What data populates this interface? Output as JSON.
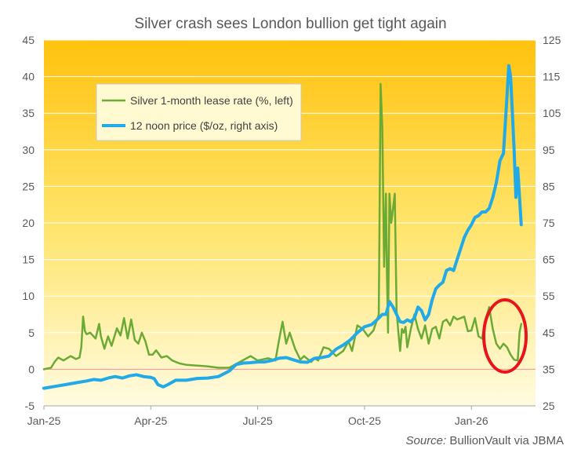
{
  "chart_data": {
    "type": "line",
    "title": "Silver crash sees London bullion get tight again",
    "source_label": "Source:",
    "source_text": "BullionVault via JBMA",
    "x_tick_labels": [
      "Jan-25",
      "Apr-25",
      "Jul-25",
      "Oct-25",
      "Jan-26"
    ],
    "x_tick_values": [
      0,
      3,
      6,
      9,
      12
    ],
    "xlim": [
      0,
      13.8
    ],
    "left_axis": {
      "ylim": [
        -5,
        45
      ],
      "ticks": [
        -5,
        0,
        5,
        10,
        15,
        20,
        25,
        30,
        35,
        40,
        45
      ]
    },
    "right_axis": {
      "ylim": [
        25,
        125
      ],
      "ticks": [
        25,
        35,
        45,
        55,
        65,
        75,
        85,
        95,
        105,
        115,
        125
      ]
    },
    "legend_position": "top-left",
    "colors": {
      "lease": "#6aaa35",
      "price": "#22a9e8",
      "zero_line": "#ff8a8a",
      "highlight": "#e8141c",
      "grid": "#ffffff"
    },
    "series": [
      {
        "name": "Silver 1-month lease rate (%, left)",
        "axis": "left",
        "x": [
          0,
          0.2,
          0.3,
          0.4,
          0.55,
          0.75,
          0.9,
          1.0,
          1.05,
          1.1,
          1.15,
          1.2,
          1.3,
          1.45,
          1.55,
          1.6,
          1.7,
          1.8,
          1.9,
          2.05,
          2.15,
          2.25,
          2.35,
          2.45,
          2.55,
          2.65,
          2.75,
          2.85,
          2.95,
          3.05,
          3.15,
          3.3,
          3.45,
          3.6,
          3.8,
          4.0,
          4.3,
          4.6,
          4.9,
          5.2,
          5.5,
          5.8,
          6.0,
          6.3,
          6.5,
          6.6,
          6.7,
          6.8,
          6.9,
          7.05,
          7.2,
          7.3,
          7.5,
          7.6,
          7.7,
          7.85,
          8.0,
          8.2,
          8.4,
          8.55,
          8.65,
          8.8,
          8.95,
          9.1,
          9.25,
          9.4,
          9.45,
          9.5,
          9.55,
          9.6,
          9.63,
          9.66,
          9.7,
          9.75,
          9.8,
          9.85,
          9.9,
          9.95,
          10.0,
          10.05,
          10.1,
          10.15,
          10.2,
          10.3,
          10.4,
          10.5,
          10.6,
          10.7,
          10.8,
          10.9,
          11.0,
          11.1,
          11.2,
          11.3,
          11.4,
          11.5,
          11.6,
          11.7,
          11.8,
          11.9,
          12.0,
          12.1,
          12.2,
          12.3,
          12.4,
          12.5,
          12.6,
          12.7,
          12.8,
          12.9,
          13.0,
          13.1,
          13.2,
          13.3,
          13.35,
          13.4
        ],
        "values": [
          0,
          0.2,
          1.0,
          1.6,
          1.2,
          1.8,
          1.4,
          1.6,
          3.0,
          7.2,
          5.2,
          4.8,
          5.0,
          4.2,
          6.2,
          4.5,
          2.8,
          4.5,
          3.2,
          5.6,
          4.6,
          7.0,
          4.2,
          6.8,
          4.0,
          3.5,
          5.0,
          3.8,
          2.0,
          2.0,
          2.6,
          1.6,
          1.8,
          1.2,
          0.8,
          0.6,
          0.5,
          0.4,
          0.2,
          0.2,
          1.0,
          1.8,
          1.2,
          1.5,
          1.2,
          4.0,
          6.5,
          3.5,
          5.0,
          2.8,
          1.3,
          1.8,
          1.0,
          1.5,
          1.2,
          3.0,
          2.8,
          1.8,
          2.5,
          3.8,
          2.5,
          6.0,
          5.5,
          4.5,
          5.3,
          7.5,
          39.0,
          33.0,
          14.0,
          24.0,
          13.0,
          5.0,
          24.0,
          20.0,
          22.0,
          24.0,
          8.0,
          5.0,
          2.5,
          5.5,
          5.0,
          5.8,
          3.0,
          5.5,
          7.5,
          5.5,
          4.2,
          6.0,
          3.5,
          5.5,
          5.8,
          4.2,
          6.5,
          6.8,
          6.0,
          7.2,
          6.8,
          7.0,
          7.2,
          5.2,
          5.3,
          7.0,
          4.5,
          4.2,
          6.8,
          8.5,
          5.5,
          3.5,
          2.8,
          3.5,
          3.0,
          2.0,
          1.3,
          1.2,
          5.0,
          6.2
        ]
      },
      {
        "name": "12 noon price ($/oz, right axis)",
        "axis": "right",
        "x": [
          0,
          0.3,
          0.6,
          0.9,
          1.2,
          1.4,
          1.6,
          1.8,
          2.0,
          2.2,
          2.4,
          2.6,
          2.8,
          3.0,
          3.1,
          3.2,
          3.35,
          3.5,
          3.7,
          4.0,
          4.3,
          4.6,
          4.9,
          5.2,
          5.4,
          5.6,
          5.8,
          6.0,
          6.2,
          6.4,
          6.6,
          6.8,
          7.0,
          7.2,
          7.4,
          7.6,
          7.8,
          8.0,
          8.2,
          8.4,
          8.6,
          8.8,
          9.0,
          9.2,
          9.4,
          9.5,
          9.6,
          9.7,
          9.8,
          9.9,
          10.0,
          10.1,
          10.2,
          10.3,
          10.4,
          10.5,
          10.6,
          10.7,
          10.8,
          10.9,
          11.0,
          11.1,
          11.2,
          11.3,
          11.4,
          11.5,
          11.6,
          11.7,
          11.8,
          11.9,
          12.0,
          12.1,
          12.2,
          12.3,
          12.4,
          12.5,
          12.6,
          12.7,
          12.8,
          12.9,
          13.0,
          13.05,
          13.1,
          13.15,
          13.2,
          13.25,
          13.3,
          13.35,
          13.4
        ],
        "values": [
          29.8,
          30.3,
          30.8,
          31.3,
          31.8,
          32.2,
          32.0,
          32.6,
          33.0,
          32.6,
          33.2,
          33.5,
          33.0,
          32.8,
          32.4,
          30.8,
          30.2,
          30.9,
          32.0,
          32.0,
          32.5,
          32.6,
          33.0,
          34.5,
          36.3,
          36.7,
          36.8,
          37.0,
          37.0,
          37.4,
          38.0,
          38.2,
          37.6,
          37.0,
          36.9,
          38.0,
          38.2,
          38.6,
          40.5,
          41.6,
          43.0,
          45.0,
          46.6,
          47.2,
          49.0,
          50.0,
          50.0,
          53.5,
          52.0,
          50.0,
          48.0,
          47.8,
          48.5,
          48.0,
          49.0,
          52.0,
          51.0,
          48.5,
          50.0,
          54.0,
          57.0,
          58.0,
          58.8,
          62.0,
          62.5,
          62.0,
          65.0,
          68.0,
          71.0,
          73.0,
          74.5,
          76.5,
          77.0,
          78.0,
          78.0,
          79.0,
          82.0,
          86.0,
          92.0,
          94.0,
          110.0,
          118.0,
          115.0,
          105.0,
          95.0,
          82.0,
          90.0,
          82.0,
          74.5
        ]
      }
    ]
  }
}
